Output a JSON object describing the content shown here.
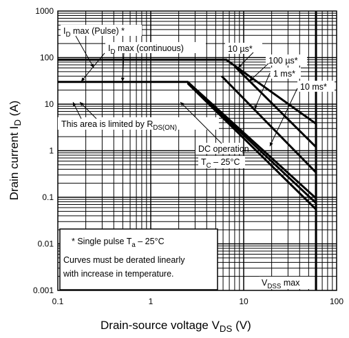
{
  "chart_data": {
    "type": "line",
    "x_scale": "log",
    "y_scale": "log",
    "xlim": [
      0.1,
      100
    ],
    "ylim": [
      0.001,
      1000
    ],
    "x_ticks": [
      {
        "value": 0.1,
        "label": "0.1"
      },
      {
        "value": 1,
        "label": "1"
      },
      {
        "value": 10,
        "label": "10"
      },
      {
        "value": 100,
        "label": "100"
      }
    ],
    "y_ticks": [
      {
        "value": 1000,
        "label": "1000"
      },
      {
        "value": 100,
        "label": "100"
      },
      {
        "value": 10,
        "label": "10"
      },
      {
        "value": 1,
        "label": "1"
      },
      {
        "value": 0.1,
        "label": "0.1"
      },
      {
        "value": 0.01,
        "label": "0.01"
      },
      {
        "value": 0.001,
        "label": "0.001"
      }
    ],
    "xlabel": {
      "main": "Drain-source voltage   V",
      "sub": "DS",
      "unit": "(V)"
    },
    "ylabel": {
      "main": "Drain current   I",
      "sub": "D",
      "unit": "(A)"
    },
    "grid": true,
    "series": [
      {
        "id": "pulse_10us",
        "points": [
          [
            0.1,
            90
          ],
          [
            6.5,
            90
          ],
          [
            60,
            3.8
          ],
          [
            60,
            0.001
          ]
        ]
      },
      {
        "id": "pulse_100us",
        "points": [
          [
            8,
            65
          ],
          [
            60,
            1.2
          ]
        ]
      },
      {
        "id": "pulse_1ms",
        "points": [
          [
            5.8,
            40
          ],
          [
            60,
            0.34
          ]
        ]
      },
      {
        "id": "dc_outer",
        "points": [
          [
            0.1,
            30
          ],
          [
            2.5,
            30
          ],
          [
            60,
            0.095
          ]
        ]
      },
      {
        "id": "dc_mid",
        "points": [
          [
            2.5,
            29
          ],
          [
            60,
            0.075
          ]
        ]
      },
      {
        "id": "dc_inner",
        "points": [
          [
            2.5,
            28
          ],
          [
            60,
            0.055
          ]
        ]
      }
    ],
    "reference_lines": [
      {
        "id": "vdss_max",
        "x": 60
      }
    ],
    "annotations": [
      {
        "id": "id_pulse",
        "label": "I",
        "sub": "D",
        "rest": " max (Pulse) *"
      },
      {
        "id": "id_cont",
        "label": "I",
        "sub": "D",
        "rest": " max (continuous)"
      },
      {
        "id": "lbl_10us",
        "text": "10 µs*"
      },
      {
        "id": "lbl_100us",
        "text": "100 µs*"
      },
      {
        "id": "lbl_1ms",
        "text": "1 ms*"
      },
      {
        "id": "lbl_10ms",
        "text": "10 ms*"
      },
      {
        "id": "rds_limit",
        "label": "This area is limited by R",
        "sub": "DS(ON)"
      },
      {
        "id": "dc_op",
        "text": "DC operation"
      },
      {
        "id": "dc_tc",
        "label": "T",
        "sub": "C",
        "rest": " – 25°C"
      },
      {
        "id": "vdss",
        "label": "V",
        "sub": "DSS",
        "rest": " max"
      }
    ],
    "notes": [
      {
        "label": "* Single pulse T",
        "sub": "a",
        "rest": " – 25°C"
      },
      {
        "text": "Curves must be derated linearly"
      },
      {
        "text": "with increase in temperature."
      }
    ]
  }
}
